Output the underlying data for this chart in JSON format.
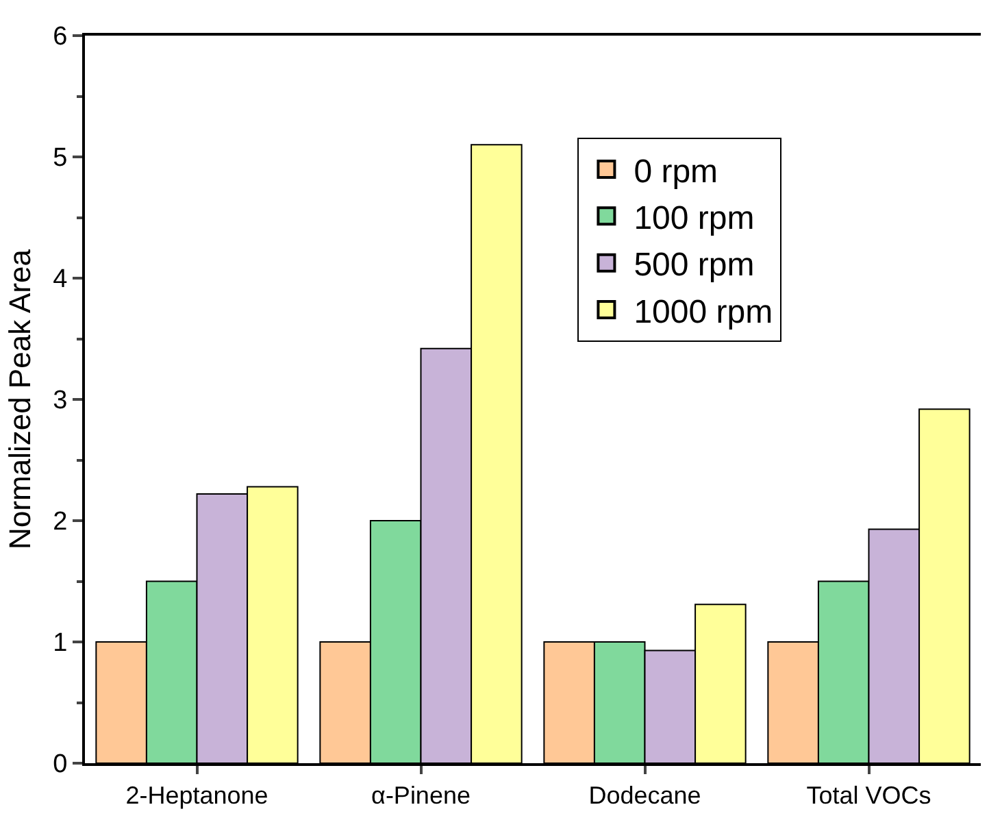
{
  "chart_data": {
    "type": "bar",
    "ylabel": "Normalized Peak Area",
    "categories": [
      "2-Heptanone",
      "α-Pinene",
      "Dodecane",
      "Total VOCs"
    ],
    "series": [
      {
        "name": "0 rpm",
        "color": "#ffc896",
        "values": [
          1,
          1,
          1,
          1
        ]
      },
      {
        "name": "100 rpm",
        "color": "#80d99c",
        "values": [
          1.5,
          2.0,
          1.0,
          1.5
        ]
      },
      {
        "name": "500 rpm",
        "color": "#c8b3d8",
        "values": [
          2.22,
          3.42,
          0.93,
          1.93
        ]
      },
      {
        "name": "1000 rpm",
        "color": "#ffff99",
        "values": [
          2.28,
          5.1,
          1.31,
          2.92
        ]
      }
    ],
    "ylim": [
      0,
      6
    ],
    "yticks": [
      0,
      1,
      2,
      3,
      4,
      5,
      6
    ],
    "grid": false,
    "legend": "top right"
  }
}
